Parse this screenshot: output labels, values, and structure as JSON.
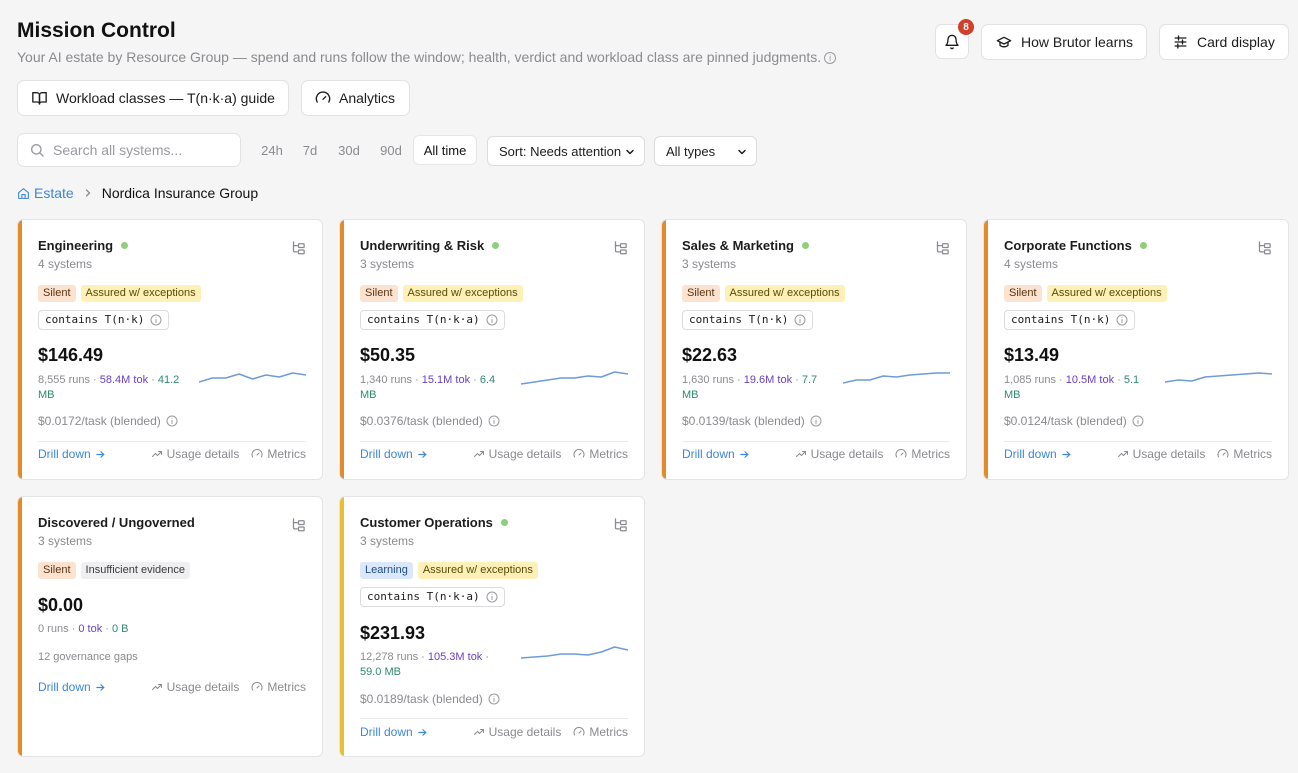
{
  "header": {
    "title": "Mission Control",
    "subtitle": "Your AI estate by Resource Group — spend and runs follow the window; health, verdict and workload class are pinned judgments.",
    "notifications_count": "8",
    "how_label": "How Brutor learns",
    "card_display_label": "Card display",
    "guide_label": "Workload classes — T(n·k·a) guide",
    "analytics_label": "Analytics"
  },
  "toolbar": {
    "search_placeholder": "Search all systems...",
    "ranges": [
      "24h",
      "7d",
      "30d",
      "90d",
      "All time"
    ],
    "active_range": "All time",
    "sort_label": "Sort: Needs attention",
    "type_label": "All types"
  },
  "breadcrumb": {
    "root": "Estate",
    "current": "Nordica Insurance Group"
  },
  "footer_labels": {
    "drill": "Drill down",
    "usage": "Usage details",
    "metrics": "Metrics"
  },
  "colors": {
    "accent": "#3d86d8",
    "stripe_orange": "#e38a2c",
    "stripe_yellow": "#e8be32",
    "healthy_dot": "#8fce7d",
    "tokens": "#6a3fc8",
    "bytes": "#2e8b6b"
  },
  "cards": [
    {
      "name": "Engineering",
      "systems": "4 systems",
      "healthy": true,
      "tags": [
        {
          "label": "Silent",
          "kind": "silent"
        },
        {
          "label": "Assured w/ exceptions",
          "kind": "assured"
        }
      ],
      "workload": "contains T(n·k)",
      "spend": "$146.49",
      "runs": "8,555 runs",
      "tokens": "58.4M tok",
      "bytes": "41.2 MB",
      "per_task": "$0.0172/task (blended)",
      "trend": [
        12,
        8,
        8,
        4,
        9,
        5,
        7,
        3,
        5
      ]
    },
    {
      "name": "Underwriting & Risk",
      "systems": "3 systems",
      "healthy": true,
      "tags": [
        {
          "label": "Silent",
          "kind": "silent"
        },
        {
          "label": "Assured w/ exceptions",
          "kind": "assured"
        }
      ],
      "workload": "contains T(n·k·a)",
      "spend": "$50.35",
      "runs": "1,340 runs",
      "tokens": "15.1M tok",
      "bytes": "6.4 MB",
      "per_task": "$0.0376/task (blended)",
      "trend": [
        14,
        12,
        10,
        8,
        8,
        6,
        7,
        2,
        4
      ]
    },
    {
      "name": "Sales & Marketing",
      "systems": "3 systems",
      "healthy": true,
      "tags": [
        {
          "label": "Silent",
          "kind": "silent"
        },
        {
          "label": "Assured w/ exceptions",
          "kind": "assured"
        }
      ],
      "workload": "contains T(n·k)",
      "spend": "$22.63",
      "runs": "1,630 runs",
      "tokens": "19.6M tok",
      "bytes": "7.7 MB",
      "per_task": "$0.0139/task (blended)",
      "trend": [
        13,
        10,
        10,
        6,
        7,
        5,
        4,
        3,
        3
      ]
    },
    {
      "name": "Corporate Functions",
      "systems": "4 systems",
      "healthy": true,
      "tags": [
        {
          "label": "Silent",
          "kind": "silent"
        },
        {
          "label": "Assured w/ exceptions",
          "kind": "assured"
        }
      ],
      "workload": "contains T(n·k)",
      "spend": "$13.49",
      "runs": "1,085 runs",
      "tokens": "10.5M tok",
      "bytes": "5.1 MB",
      "per_task": "$0.0124/task (blended)",
      "trend": [
        12,
        10,
        11,
        7,
        6,
        5,
        4,
        3,
        4
      ]
    },
    {
      "name": "Discovered / Ungoverned",
      "systems": "3 systems",
      "healthy": false,
      "tags": [
        {
          "label": "Silent",
          "kind": "silent"
        },
        {
          "label": "Insufficient evidence",
          "kind": "insuff"
        }
      ],
      "workload": "",
      "spend": "$0.00",
      "runs": "0 runs",
      "tokens": "0 tok",
      "bytes": "0 B",
      "per_task": "",
      "gaps": "12 governance gaps",
      "trend": []
    },
    {
      "name": "Customer Operations",
      "systems": "3 systems",
      "healthy": true,
      "tags": [
        {
          "label": "Learning",
          "kind": "learning"
        },
        {
          "label": "Assured w/ exceptions",
          "kind": "assured"
        }
      ],
      "workload": "contains T(n·k·a)",
      "spend": "$231.93",
      "runs": "12,278 runs",
      "tokens": "105.3M tok",
      "bytes": "59.0 MB",
      "per_task": "$0.0189/task (blended)",
      "trend": [
        13,
        12,
        11,
        9,
        9,
        10,
        7,
        2,
        5
      ]
    }
  ]
}
